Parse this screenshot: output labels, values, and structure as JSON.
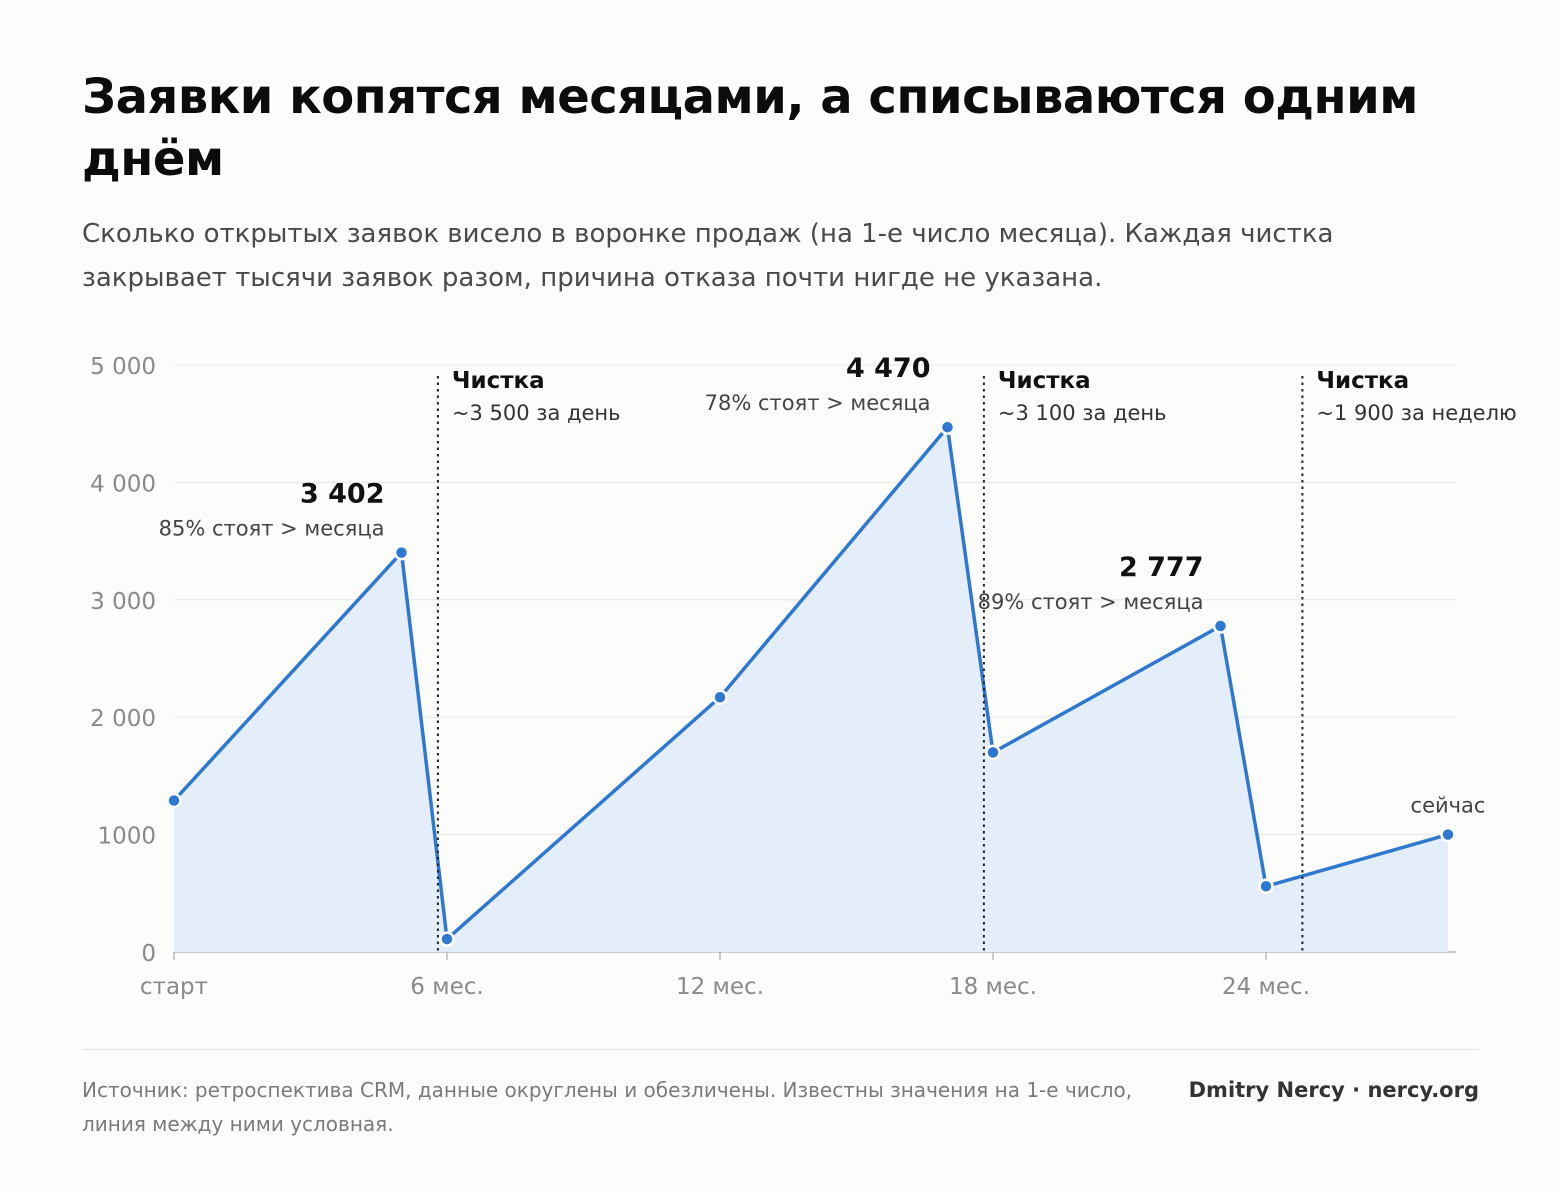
{
  "header": {
    "title": "Заявки копятся месяцами, а списываются одним днём",
    "subtitle": "Сколько открытых заявок висело в воронке продаж (на 1-е число месяца). Каждая чистка закрывает тысячи заявок разом, причина отказа почти нигде не указана."
  },
  "footer": {
    "source": "Источник: ретроспектива CRM, данные округлены и обезличены. Известны значения на 1-е число, линия между ними условная.",
    "brand": "Dmitry Nercy · nercy.org"
  },
  "chart_data": {
    "type": "area",
    "xlim": [
      0,
      28
    ],
    "ylim": [
      0,
      5000
    ],
    "x_ticks": [
      {
        "x": 0,
        "label": "старт"
      },
      {
        "x": 6,
        "label": "6 мес."
      },
      {
        "x": 12,
        "label": "12 мес."
      },
      {
        "x": 18,
        "label": "18 мес."
      },
      {
        "x": 24,
        "label": "24 мес."
      }
    ],
    "y_ticks": [
      {
        "y": 0,
        "label": "0"
      },
      {
        "y": 1000,
        "label": "1000"
      },
      {
        "y": 2000,
        "label": "2 000"
      },
      {
        "y": 3000,
        "label": "3 000"
      },
      {
        "y": 4000,
        "label": "4 000"
      },
      {
        "y": 5000,
        "label": "5 000"
      }
    ],
    "grid": true,
    "line_color": "#2f78d2",
    "fill_color": "#e4edfa",
    "points": [
      {
        "x": 0,
        "y": 1290
      },
      {
        "x": 5,
        "y": 3402
      },
      {
        "x": 6,
        "y": 110
      },
      {
        "x": 12,
        "y": 2170
      },
      {
        "x": 17,
        "y": 4470
      },
      {
        "x": 18,
        "y": 1700
      },
      {
        "x": 23,
        "y": 2777
      },
      {
        "x": 24,
        "y": 560
      },
      {
        "x": 28,
        "y": 1000
      }
    ],
    "peak_labels": [
      {
        "point": 1,
        "value": "3 402",
        "note": "85% стоят > месяца"
      },
      {
        "point": 4,
        "value": "4 470",
        "note": "78% стоят > месяца"
      },
      {
        "point": 6,
        "value": "2 777",
        "note": "89% стоят > месяца"
      }
    ],
    "now_label": {
      "point": 8,
      "text": "сейчас"
    },
    "cleanups": [
      {
        "x": 5.8,
        "title": "Чистка",
        "note": "~3 500 за день"
      },
      {
        "x": 17.8,
        "title": "Чистка",
        "note": "~3 100 за день"
      },
      {
        "x": 24.8,
        "title": "Чистка",
        "note": "~1 900 за неделю"
      }
    ]
  }
}
